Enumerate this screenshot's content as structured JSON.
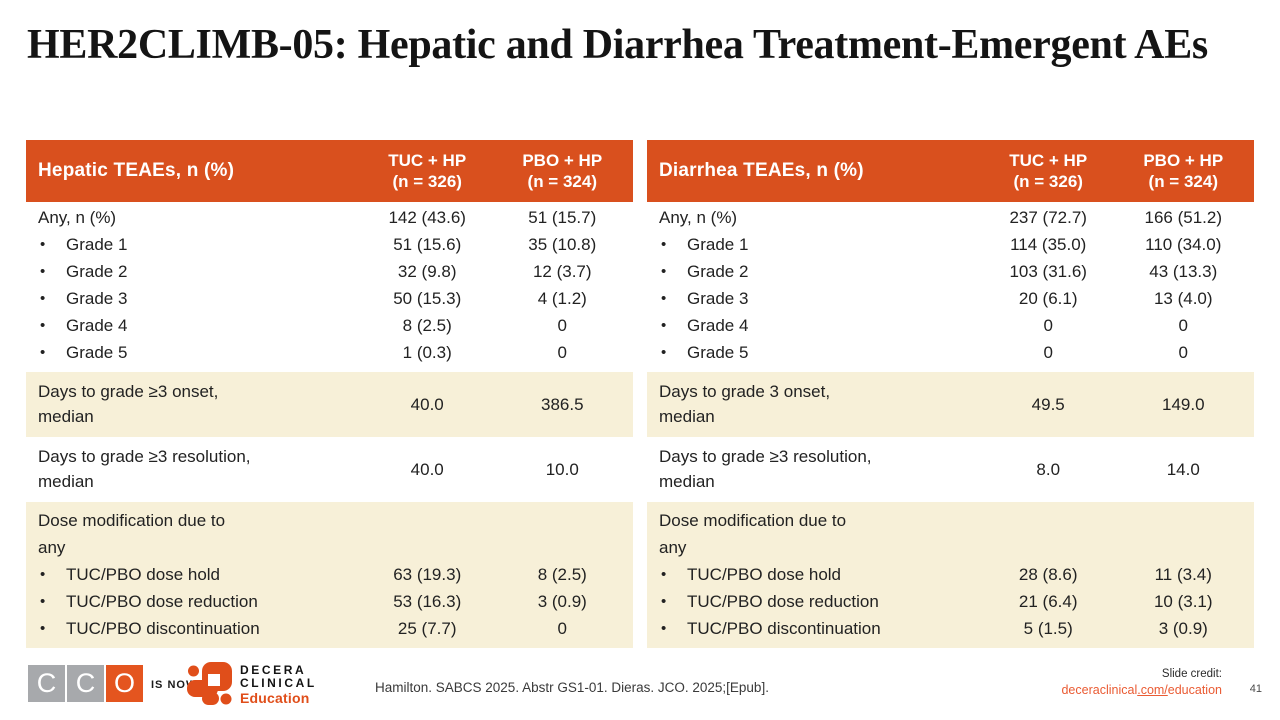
{
  "slide": {
    "title": "HER2CLIMB-05: Hepatic and Diarrhea Treatment-Emergent AEs"
  },
  "colors": {
    "header_orange": "#D9501E",
    "row_beige": "#F7F0D8",
    "body_text": "#222222",
    "cco_gray": "#A7A9AC",
    "cco_orange": "#E4551F",
    "decera_orange": "#E04E1A",
    "link_orange": "#EA5B33"
  },
  "tables": [
    {
      "header": {
        "label": "Hepatic TEAEs, n (%)",
        "col1": [
          "TUC + HP",
          "(n = 326)"
        ],
        "col2": [
          "PBO + HP",
          "(n = 324)"
        ]
      },
      "sections": [
        {
          "shade": "white",
          "rows": [
            {
              "label": "Any, n (%)",
              "bullet": false,
              "v1": "142 (43.6)",
              "v2": "51 (15.7)"
            },
            {
              "label": "Grade 1",
              "bullet": true,
              "v1": "51 (15.6)",
              "v2": "35 (10.8)"
            },
            {
              "label": "Grade 2",
              "bullet": true,
              "v1": "32 (9.8)",
              "v2": "12 (3.7)"
            },
            {
              "label": "Grade 3",
              "bullet": true,
              "v1": "50 (15.3)",
              "v2": "4 (1.2)"
            },
            {
              "label": "Grade 4",
              "bullet": true,
              "v1": "8 (2.5)",
              "v2": "0"
            },
            {
              "label": "Grade 5",
              "bullet": true,
              "v1": "1 (0.3)",
              "v2": "0"
            }
          ]
        },
        {
          "shade": "beige",
          "rows": [
            {
              "label": [
                "Days to grade ≥3 onset,",
                "median"
              ],
              "bullet": false,
              "v1": "40.0",
              "v2": "386.5",
              "tall": true
            }
          ]
        },
        {
          "shade": "white",
          "rows": [
            {
              "label": [
                "Days to grade ≥3 resolution,",
                "median"
              ],
              "bullet": false,
              "v1": "40.0",
              "v2": "10.0",
              "tall": true
            }
          ]
        },
        {
          "shade": "beige",
          "rows": [
            {
              "label": [
                "Dose modification due to",
                "any"
              ],
              "bullet": false,
              "v1": "",
              "v2": ""
            },
            {
              "label": "TUC/PBO dose hold",
              "bullet": true,
              "v1": "63 (19.3)",
              "v2": "8 (2.5)"
            },
            {
              "label": "TUC/PBO dose reduction",
              "bullet": true,
              "v1": "53 (16.3)",
              "v2": "3 (0.9)"
            },
            {
              "label": "TUC/PBO discontinuation",
              "bullet": true,
              "v1": "25 (7.7)",
              "v2": "0"
            }
          ]
        }
      ]
    },
    {
      "header": {
        "label": "Diarrhea TEAEs, n (%)",
        "col1": [
          "TUC + HP",
          "(n = 326)"
        ],
        "col2": [
          "PBO + HP",
          "(n = 324)"
        ]
      },
      "sections": [
        {
          "shade": "white",
          "rows": [
            {
              "label": "Any, n (%)",
              "bullet": false,
              "v1": "237 (72.7)",
              "v2": "166 (51.2)"
            },
            {
              "label": "Grade 1",
              "bullet": true,
              "v1": "114 (35.0)",
              "v2": "110 (34.0)"
            },
            {
              "label": "Grade 2",
              "bullet": true,
              "v1": "103 (31.6)",
              "v2": "43 (13.3)"
            },
            {
              "label": "Grade 3",
              "bullet": true,
              "v1": "20 (6.1)",
              "v2": "13 (4.0)"
            },
            {
              "label": "Grade 4",
              "bullet": true,
              "v1": "0",
              "v2": "0"
            },
            {
              "label": "Grade 5",
              "bullet": true,
              "v1": "0",
              "v2": "0"
            }
          ]
        },
        {
          "shade": "beige",
          "rows": [
            {
              "label": [
                "Days to grade 3 onset,",
                "median"
              ],
              "bullet": false,
              "v1": "49.5",
              "v2": "149.0",
              "tall": true
            }
          ]
        },
        {
          "shade": "white",
          "rows": [
            {
              "label": [
                "Days to grade ≥3 resolution,",
                "median"
              ],
              "bullet": false,
              "v1": "8.0",
              "v2": "14.0",
              "tall": true
            }
          ]
        },
        {
          "shade": "beige",
          "rows": [
            {
              "label": [
                "Dose modification due to",
                "any"
              ],
              "bullet": false,
              "v1": "",
              "v2": ""
            },
            {
              "label": "TUC/PBO dose hold",
              "bullet": true,
              "v1": "28 (8.6)",
              "v2": "11 (3.4)"
            },
            {
              "label": "TUC/PBO dose reduction",
              "bullet": true,
              "v1": "21 (6.4)",
              "v2": "10 (3.1)"
            },
            {
              "label": "TUC/PBO discontinuation",
              "bullet": true,
              "v1": "5 (1.5)",
              "v2": "3 (0.9)"
            }
          ]
        }
      ]
    }
  ],
  "footer": {
    "cco_letters": [
      "C",
      "C",
      "O"
    ],
    "is_now": "IS NOW",
    "decera_line1": "DECERA",
    "decera_line2": "CLINICAL",
    "decera_line3": "Education",
    "citation": "Hamilton. SABCS 2025. Abstr GS1-01. Dieras. JCO. 2025;[Epub].",
    "slide_credit_label": "Slide credit:",
    "link_pre": "deceraclinical",
    "link_mid": ".com/",
    "link_post": "education",
    "page_number": "41"
  }
}
